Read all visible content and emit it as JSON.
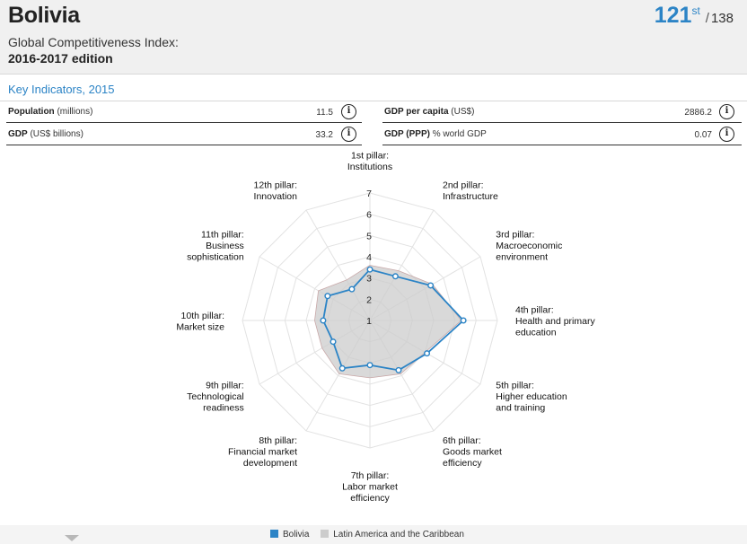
{
  "header": {
    "country": "Bolivia",
    "index_title": "Global Competitiveness Index:",
    "edition": "2016-2017 edition",
    "rank": "121",
    "rank_suffix": "st",
    "rank_separator": "/",
    "rank_total": "138"
  },
  "key_indicators": {
    "title": "Key Indicators, 2015",
    "info_glyph": "i",
    "items": [
      {
        "label": "Population",
        "unit": "(millions)",
        "value": "11.5"
      },
      {
        "label": "GDP",
        "unit": "(US$ billions)",
        "value": "33.2"
      },
      {
        "label": "GDP per capita",
        "unit": "(US$)",
        "value": "2886.2"
      },
      {
        "label": "GDP (PPP)",
        "unit": "% world GDP",
        "value": "0.07"
      }
    ]
  },
  "chart_data": {
    "type": "radar",
    "title": "",
    "axes": [
      [
        "1st pillar:",
        "Institutions"
      ],
      [
        "2nd pillar:",
        "Infrastructure"
      ],
      [
        "3rd pillar:",
        "Macroeconomic",
        "environment"
      ],
      [
        "4th pillar:",
        "Health and primary",
        "education"
      ],
      [
        "5th pillar:",
        "Higher education",
        "and training"
      ],
      [
        "6th pillar:",
        "Goods market",
        "efficiency"
      ],
      [
        "7th pillar:",
        "Labor market",
        "efficiency"
      ],
      [
        "8th pillar:",
        "Financial market",
        "development"
      ],
      [
        "9th pillar:",
        "Technological",
        "readiness"
      ],
      [
        "10th pillar:",
        "Market size"
      ],
      [
        "11th pillar:",
        "Business",
        "sophistication"
      ],
      [
        "12th pillar:",
        "Innovation"
      ]
    ],
    "range": [
      1,
      7
    ],
    "ticks": [
      "1",
      "2",
      "3",
      "4",
      "5",
      "6",
      "7"
    ],
    "series": [
      {
        "name": "Bolivia",
        "color": "#2c84c6",
        "values": [
          3.4,
          3.4,
          4.3,
          5.4,
          4.1,
          3.7,
          3.1,
          3.6,
          3.0,
          3.2,
          3.3,
          2.7
        ]
      },
      {
        "name": "Latin America and the Caribbean",
        "color": "#cccccc",
        "values": [
          3.6,
          3.7,
          4.4,
          5.3,
          4.0,
          3.9,
          3.7,
          3.9,
          3.6,
          3.6,
          3.8,
          3.2
        ]
      }
    ],
    "legend": "bottom-center"
  },
  "colors": {
    "accent": "#2c84c6",
    "regional_fill": "#cccccc"
  }
}
